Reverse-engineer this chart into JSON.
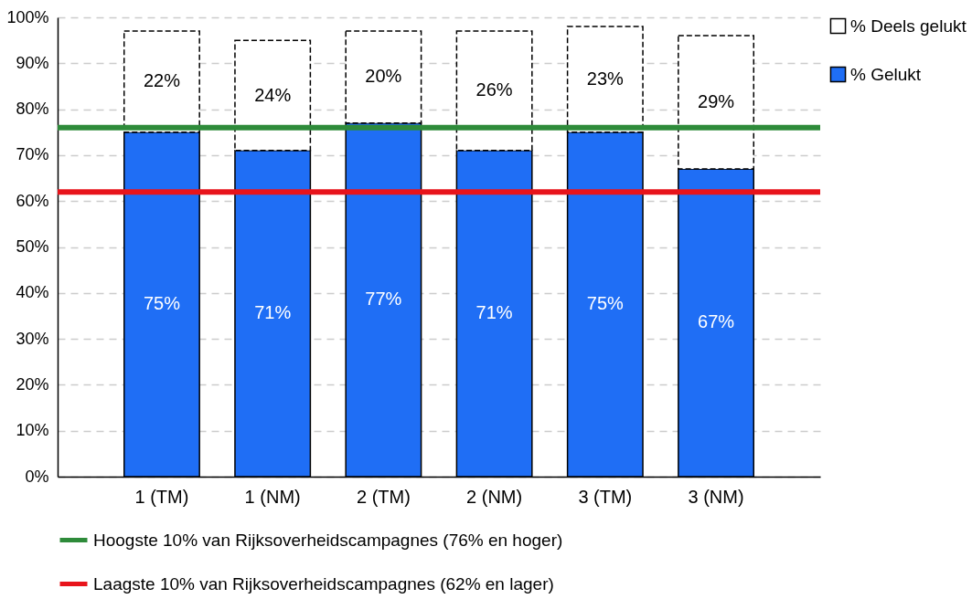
{
  "chart_data": {
    "type": "bar",
    "stacked": true,
    "categories": [
      "1 (TM)",
      "1 (NM)",
      "2 (TM)",
      "2 (NM)",
      "3 (TM)",
      "3 (NM)"
    ],
    "series": [
      {
        "name": "% Gelukt",
        "color": "#1f6ef5",
        "values": [
          75,
          71,
          77,
          71,
          75,
          67
        ],
        "value_labels": [
          "75%",
          "71%",
          "77%",
          "71%",
          "75%",
          "67%"
        ]
      },
      {
        "name": "% Deels gelukt",
        "color": "#ffffff",
        "line_style": "dashed",
        "values": [
          22,
          24,
          20,
          26,
          23,
          29
        ],
        "value_labels": [
          "22%",
          "24%",
          "20%",
          "26%",
          "23%",
          "29%"
        ]
      }
    ],
    "ylim": [
      0,
      100
    ],
    "yticks": [
      {
        "value": 0,
        "label": "0%"
      },
      {
        "value": 10,
        "label": "10%"
      },
      {
        "value": 20,
        "label": "20%"
      },
      {
        "value": 30,
        "label": "30%"
      },
      {
        "value": 40,
        "label": "40%"
      },
      {
        "value": 50,
        "label": "50%"
      },
      {
        "value": 60,
        "label": "60%"
      },
      {
        "value": 70,
        "label": "70%"
      },
      {
        "value": 80,
        "label": "80%"
      },
      {
        "value": 90,
        "label": "90%"
      },
      {
        "value": 100,
        "label": "100%"
      }
    ],
    "grid": "y",
    "legend": "right",
    "ref_lines": [
      {
        "axis": "y",
        "value": 76,
        "label": "Hoogste 10% van Rijksoverheidscampagnes (76% en hoger)",
        "color": "#2e8b3a"
      },
      {
        "axis": "y",
        "value": 62,
        "label": "Laagste 10% van Rijksoverheidscampagnes (62% en lager)",
        "color": "#e8141b"
      }
    ]
  }
}
